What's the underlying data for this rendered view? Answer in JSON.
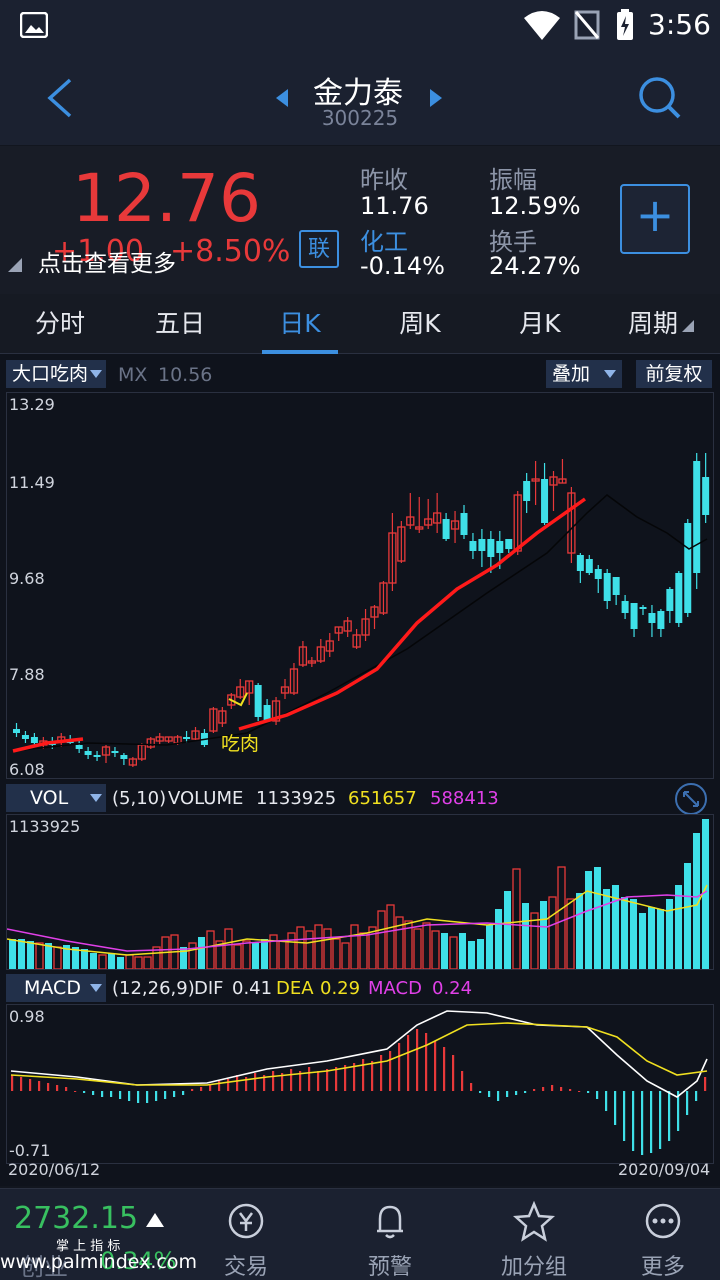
{
  "status": {
    "time": "3:56"
  },
  "header": {
    "stock_name": "金力泰",
    "stock_code": "300225"
  },
  "quote": {
    "price": "12.76",
    "change": "+1.00",
    "change_pct": "+8.50%",
    "tip": "点击查看更多",
    "link_badge": "联",
    "prev_close_label": "昨收",
    "prev_close": "11.76",
    "amplitude_label": "振幅",
    "amplitude": "12.59%",
    "sector_label": "化工",
    "sector_change": "-0.14%",
    "turnover_label": "换手",
    "turnover": "24.27%",
    "add_button": "+"
  },
  "tabs": [
    "分时",
    "五日",
    "日K",
    "周K",
    "月K",
    "周期"
  ],
  "active_tab": 2,
  "kline": {
    "indicator": "大口吃肉",
    "mx_label": "MX",
    "mx_value": "10.56",
    "overlay_btn": "叠加",
    "adjust_btn": "前复权",
    "price_axis": [
      "13.29",
      "11.49",
      "9.68",
      "7.88",
      "6.08"
    ],
    "signal_label": "吃肉"
  },
  "volume": {
    "indicator": "VOL",
    "params": "(5,10)",
    "label": "VOLUME",
    "value": "1133925",
    "ma5": "651657",
    "ma10": "588413",
    "axis_top": "1133925"
  },
  "macd": {
    "indicator": "MACD",
    "params": "(12,26,9)",
    "dif_label": "DIF",
    "dif": "0.41",
    "dea_label": "DEA",
    "dea": "0.29",
    "macd_label": "MACD",
    "macd": "0.24",
    "axis_top": "0.98",
    "axis_bottom": "-0.71",
    "date_start": "2020/06/12",
    "date_end": "2020/09/04"
  },
  "bottom": {
    "index_value": "2732.15",
    "index_name": "创业",
    "index_change": "0.34%",
    "watermark": "www.palmindex.com",
    "watermark_brand": "掌 上 指 标",
    "items": [
      "交易",
      "预警",
      "加分组",
      "更多"
    ]
  },
  "colors": {
    "up": "#e8393a",
    "down": "#3fe0e8",
    "accent": "#3c8fe0"
  }
}
